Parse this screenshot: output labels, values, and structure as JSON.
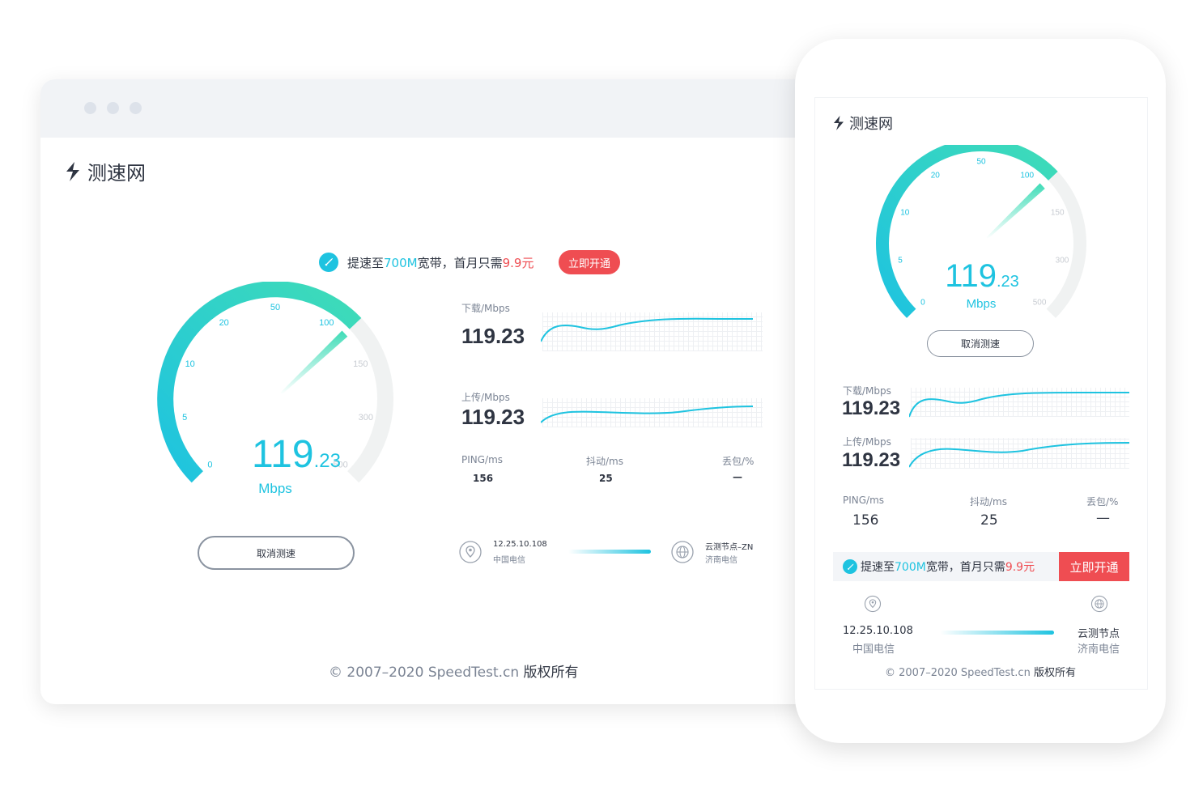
{
  "brand": {
    "name": "测速网"
  },
  "colors": {
    "accent": "#1ec3e0",
    "promo": "#ef4d52",
    "text": "#2f3542"
  },
  "gauge": {
    "ticks": [
      "0",
      "5",
      "10",
      "20",
      "50",
      "100",
      "150",
      "300",
      "500"
    ],
    "value_int": "119",
    "value_dec": ".23",
    "unit": "Mbps",
    "current_value": 119.23
  },
  "cancel_button": "取消测速",
  "promo": {
    "icon": "rocket-icon",
    "text_prefix": "提速至",
    "speed": "700M",
    "text_mid": "宽带，首月只需",
    "price": "9.9元",
    "button": "立即开通"
  },
  "download": {
    "label": "下载/Mbps",
    "value": "119.23"
  },
  "upload": {
    "label": "上传/Mbps",
    "value": "119.23"
  },
  "stats": {
    "ping_label": "PING/ms",
    "ping_value": "156",
    "jitter_label": "抖动/ms",
    "jitter_value": "25",
    "loss_label": "丢包/%",
    "loss_value": "—"
  },
  "client": {
    "ip": "12.25.10.108",
    "isp": "中国电信",
    "icon": "location-pin-icon"
  },
  "server": {
    "desktop_name": "云测节点–ZN",
    "mobile_name": "云测节点",
    "isp": "济南电信",
    "icon": "globe-icon"
  },
  "footer": {
    "copyright": "© 2007–2020 SpeedTest.cn",
    "rights": "版权所有"
  }
}
